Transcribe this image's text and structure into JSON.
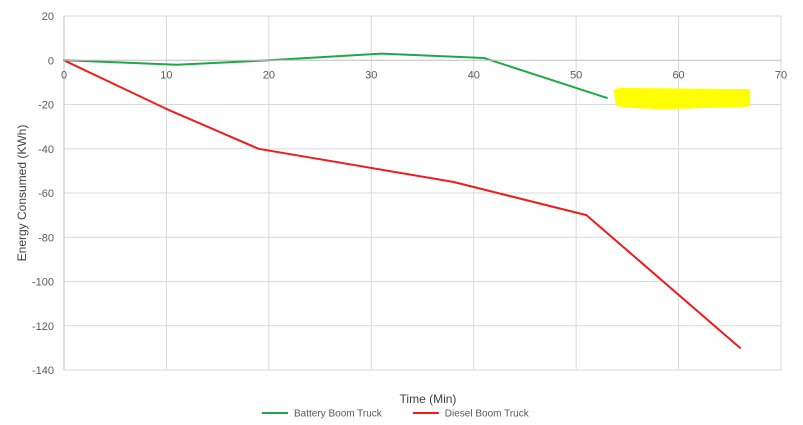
{
  "chart_data": {
    "type": "line",
    "title": "",
    "xlabel": "Time (Min)",
    "ylabel": "Energy Consumed (KWh)",
    "xlim": [
      0,
      70
    ],
    "ylim": [
      -140,
      20
    ],
    "x_ticks": [
      0,
      10,
      20,
      30,
      40,
      50,
      60,
      70
    ],
    "y_ticks": [
      -140,
      -120,
      -100,
      -80,
      -60,
      -40,
      -20,
      0,
      20
    ],
    "grid": true,
    "legend_position": "bottom",
    "series": [
      {
        "name": "Battery Boom Truck",
        "color": "#1FA84A",
        "x": [
          0,
          11,
          20,
          31,
          41,
          53
        ],
        "y": [
          0,
          -2,
          0,
          3,
          1,
          -17
        ]
      },
      {
        "name": "Diesel Boom Truck",
        "color": "#EE1C1C",
        "x": [
          0,
          10,
          19,
          38,
          51,
          66
        ],
        "y": [
          0,
          -22,
          -40,
          -55,
          -70,
          -130
        ]
      }
    ],
    "annotations": [
      {
        "type": "highlight",
        "color": "#FFFF00",
        "x_range": [
          53.5,
          67
        ],
        "y_range": [
          -21,
          -13
        ]
      }
    ]
  }
}
